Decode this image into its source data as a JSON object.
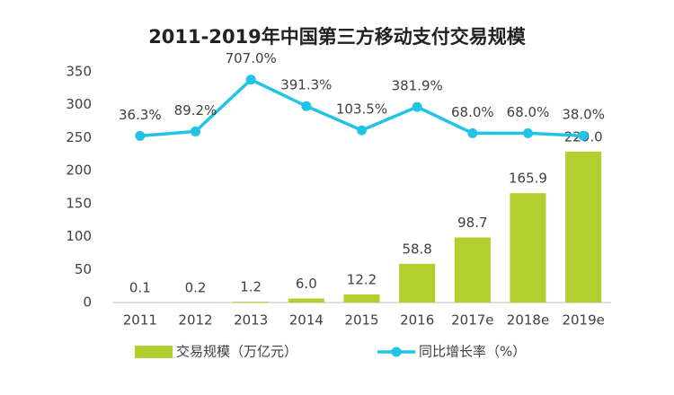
{
  "chart_data": {
    "type": "bar_line",
    "title": "2011-2019年中国第三方移动支付交易规模",
    "categories": [
      "2011",
      "2012",
      "2013",
      "2014",
      "2015",
      "2016",
      "2017e",
      "2018e",
      "2019e"
    ],
    "series": [
      {
        "name": "交易规模（万亿元）",
        "type": "bar",
        "color": "#b3cf2f",
        "values": [
          0.1,
          0.2,
          1.2,
          6.0,
          12.2,
          58.8,
          98.7,
          165.9,
          229.0
        ],
        "value_labels": [
          "0.1",
          "0.2",
          "1.2",
          "6.0",
          "12.2",
          "58.8",
          "98.7",
          "165.9",
          "229.0"
        ]
      },
      {
        "name": "同比增长率（%）",
        "type": "line",
        "axis": "y2",
        "color": "#22c3e6",
        "values": [
          36.3,
          89.2,
          707.0,
          391.3,
          103.5,
          381.9,
          68.0,
          68.0,
          38.0
        ],
        "value_labels": [
          "36.3%",
          "89.2%",
          "707.0%",
          "391.3%",
          "103.5%",
          "381.9%",
          "68.0%",
          "68.0%",
          "38.0%"
        ]
      }
    ],
    "ylim": [
      0,
      350
    ],
    "yticks": [
      0,
      50,
      100,
      150,
      200,
      250,
      300,
      350
    ],
    "y2lim": [
      -1950,
      800
    ],
    "legend": "bottom"
  }
}
